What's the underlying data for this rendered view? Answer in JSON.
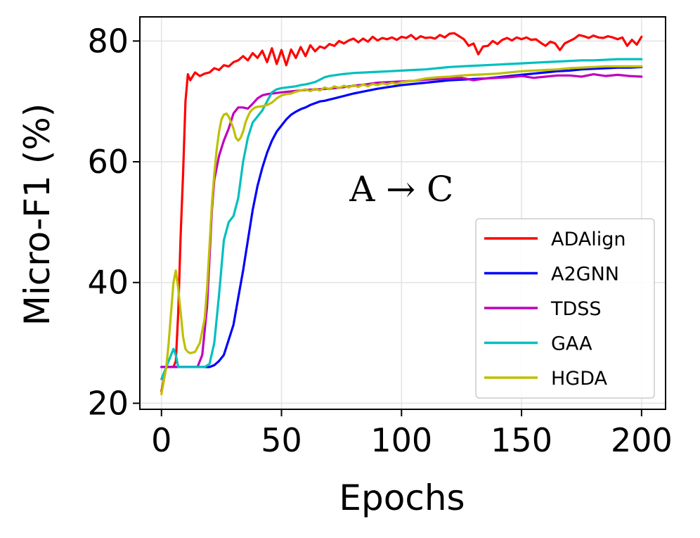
{
  "chart_data": {
    "type": "line",
    "title": "",
    "xlabel": "Epochs",
    "ylabel": "Micro-F1 (%)",
    "xlim": [
      -9,
      210
    ],
    "ylim": [
      19,
      84
    ],
    "xticks": [
      0,
      50,
      100,
      150,
      200
    ],
    "yticks": [
      20,
      40,
      60,
      80
    ],
    "grid": true,
    "legend_position": "lower-right",
    "annotation": "A → C",
    "annotation_at": [
      100,
      53.5
    ],
    "series": [
      {
        "name": "ADAlign",
        "color": "#ff0000",
        "x": [
          0,
          2,
          4,
          5,
          6,
          7,
          8,
          9,
          10,
          11,
          12,
          14,
          16,
          18,
          20,
          22,
          24,
          26,
          28,
          30,
          32,
          34,
          36,
          38,
          40,
          42,
          44,
          46,
          48,
          50,
          52,
          54,
          56,
          58,
          60,
          62,
          64,
          66,
          68,
          70,
          72,
          74,
          76,
          78,
          80,
          82,
          84,
          86,
          88,
          90,
          92,
          94,
          96,
          98,
          100,
          102,
          104,
          106,
          108,
          110,
          112,
          114,
          116,
          118,
          120,
          122,
          124,
          126,
          128,
          130,
          132,
          134,
          136,
          138,
          140,
          142,
          144,
          146,
          148,
          150,
          152,
          154,
          156,
          158,
          160,
          162,
          164,
          166,
          168,
          170,
          172,
          174,
          176,
          178,
          180,
          182,
          184,
          186,
          188,
          190,
          192,
          194,
          196,
          198,
          200
        ],
        "y": [
          22,
          26,
          26,
          26,
          27,
          35,
          48,
          58,
          70,
          74.5,
          73.5,
          74.8,
          74.2,
          74.6,
          74.8,
          75.5,
          75.2,
          76,
          75.8,
          76.5,
          76.8,
          77.5,
          76.8,
          78,
          77.2,
          78.4,
          76.5,
          78.8,
          76.2,
          78.5,
          76,
          78.6,
          77.2,
          79,
          77.5,
          79.3,
          78.3,
          79.1,
          78.8,
          79.5,
          79.2,
          80,
          79.6,
          80.1,
          80.4,
          79.8,
          80.4,
          79.9,
          80.7,
          80.1,
          80.5,
          80.3,
          80.6,
          80.2,
          80.7,
          80.5,
          81,
          80.3,
          80.8,
          80.5,
          80.6,
          80.4,
          81,
          80.6,
          81.2,
          81.3,
          80.8,
          80.3,
          79.2,
          79.6,
          77.8,
          79.1,
          79.2,
          80,
          79.5,
          80.2,
          80.5,
          80.1,
          80.6,
          80.3,
          80.6,
          80.2,
          80.3,
          79.7,
          79.2,
          79.9,
          79.6,
          78.5,
          79.6,
          80,
          80.4,
          81,
          80.8,
          80.5,
          80.9,
          80.6,
          80.5,
          80.8,
          80.6,
          80.3,
          80.6,
          79.2,
          80.2,
          79.4,
          80.7
        ]
      },
      {
        "name": "A2GNN",
        "color": "#0000ff",
        "x": [
          0,
          5,
          10,
          15,
          20,
          22,
          24,
          26,
          28,
          30,
          32,
          34,
          36,
          38,
          40,
          42,
          44,
          46,
          48,
          50,
          52,
          54,
          56,
          58,
          60,
          62,
          64,
          66,
          68,
          70,
          72,
          74,
          76,
          78,
          80,
          85,
          90,
          95,
          100,
          105,
          110,
          115,
          120,
          125,
          130,
          135,
          140,
          145,
          150,
          155,
          160,
          165,
          170,
          175,
          180,
          185,
          190,
          195,
          200
        ],
        "y": [
          26,
          26,
          26,
          26,
          26,
          26.3,
          27,
          28,
          30.5,
          33,
          37.5,
          42,
          47,
          52,
          56,
          59,
          61.5,
          63.5,
          65,
          66,
          67,
          67.8,
          68.3,
          68.7,
          69,
          69.4,
          69.7,
          70,
          70.1,
          70.3,
          70.5,
          70.7,
          70.9,
          71.1,
          71.3,
          71.7,
          72.1,
          72.4,
          72.7,
          72.9,
          73.1,
          73.3,
          73.5,
          73.6,
          73.7,
          73.8,
          74,
          74.2,
          74.4,
          74.6,
          74.8,
          75,
          75.1,
          75.3,
          75.4,
          75.5,
          75.6,
          75.6,
          75.7
        ]
      },
      {
        "name": "TDSS",
        "color": "#bf00bf",
        "x": [
          0,
          3,
          6,
          9,
          12,
          15,
          17,
          19,
          20,
          21,
          22,
          24,
          26,
          28,
          30,
          32,
          34,
          36,
          38,
          40,
          42,
          44,
          46,
          48,
          50,
          55,
          60,
          65,
          70,
          75,
          80,
          85,
          90,
          95,
          100,
          105,
          110,
          115,
          120,
          125,
          130,
          135,
          140,
          145,
          150,
          155,
          160,
          165,
          170,
          175,
          180,
          185,
          190,
          195,
          200
        ],
        "y": [
          26,
          26,
          26,
          26,
          26,
          26,
          28,
          36,
          44,
          52,
          57,
          61,
          63.5,
          65.5,
          68,
          69,
          69,
          68.8,
          69.6,
          70.5,
          71,
          71.2,
          71.3,
          71.4,
          71.5,
          71.7,
          71.9,
          72,
          72.1,
          72.3,
          72.6,
          72.8,
          73.1,
          73.2,
          73.3,
          73.4,
          73.6,
          73.7,
          73.8,
          73.9,
          73.5,
          73.8,
          73.9,
          74,
          74.2,
          73.9,
          74.1,
          74.3,
          74.3,
          74.1,
          74.5,
          74.2,
          74.4,
          74.2,
          74.1
        ]
      },
      {
        "name": "GAA",
        "color": "#00bfbf",
        "x": [
          0,
          2,
          4,
          5,
          6,
          7,
          8,
          10,
          12,
          14,
          16,
          18,
          20,
          22,
          24,
          26,
          28,
          30,
          32,
          34,
          36,
          38,
          40,
          42,
          44,
          46,
          48,
          50,
          52,
          54,
          56,
          58,
          60,
          62,
          64,
          66,
          68,
          70,
          75,
          80,
          85,
          90,
          95,
          100,
          105,
          110,
          115,
          120,
          125,
          130,
          135,
          140,
          145,
          150,
          155,
          160,
          165,
          170,
          175,
          180,
          185,
          190,
          195,
          200
        ],
        "y": [
          24,
          26,
          28,
          29,
          28,
          26,
          26,
          26,
          26,
          26,
          26,
          26,
          26.5,
          30,
          38,
          47,
          50,
          51,
          54,
          60,
          64,
          66.5,
          67.5,
          68.5,
          70,
          71.5,
          72,
          72.2,
          72.3,
          72.4,
          72.5,
          72.7,
          72.8,
          73,
          73.2,
          73.6,
          74,
          74.2,
          74.5,
          74.7,
          74.8,
          74.9,
          75,
          75.1,
          75.2,
          75.3,
          75.5,
          75.7,
          75.8,
          75.9,
          76,
          76.1,
          76.2,
          76.3,
          76.4,
          76.5,
          76.6,
          76.7,
          76.8,
          76.8,
          76.9,
          77,
          77,
          77
        ]
      },
      {
        "name": "HGDA",
        "color": "#bfbf00",
        "x": [
          0,
          2,
          3,
          4,
          5,
          6,
          7,
          8,
          9,
          10,
          11,
          12,
          14,
          16,
          18,
          19,
          20,
          21,
          22,
          23,
          24,
          25,
          26,
          27,
          28,
          29,
          30,
          31,
          32,
          33,
          34,
          35,
          36,
          37,
          38,
          39,
          40,
          42,
          44,
          46,
          48,
          50,
          52,
          54,
          56,
          58,
          60,
          62,
          64,
          66,
          68,
          70,
          72,
          74,
          76,
          78,
          80,
          82,
          84,
          86,
          88,
          90,
          92,
          94,
          96,
          98,
          100,
          105,
          110,
          115,
          120,
          125,
          130,
          135,
          140,
          145,
          150,
          155,
          160,
          165,
          170,
          175,
          180,
          185,
          190,
          195,
          200
        ],
        "y": [
          21.5,
          26,
          30,
          35,
          40,
          42,
          39,
          35,
          31,
          29,
          28.5,
          28.3,
          28.5,
          30,
          34,
          39,
          46,
          53,
          58,
          62,
          65,
          67,
          67.8,
          68,
          67.5,
          66.5,
          65.5,
          64,
          63.5,
          64,
          65,
          66.5,
          67.5,
          68.3,
          68.7,
          69,
          69.1,
          69.2,
          69.4,
          69.8,
          70.5,
          71,
          71.2,
          71.3,
          71.6,
          71.8,
          72,
          71.7,
          72.1,
          71.8,
          72.3,
          72,
          72.5,
          72.2,
          72.6,
          72.3,
          72.7,
          72.4,
          72.8,
          72.5,
          72.9,
          72.7,
          73,
          72.8,
          73.1,
          72.9,
          73.2,
          73.4,
          73.8,
          74,
          74.1,
          74.3,
          74.4,
          74.5,
          74.6,
          74.8,
          75,
          75.1,
          75.2,
          75.3,
          75.5,
          75.6,
          75.7,
          75.8,
          75.8,
          75.8,
          75.8
        ]
      }
    ]
  }
}
